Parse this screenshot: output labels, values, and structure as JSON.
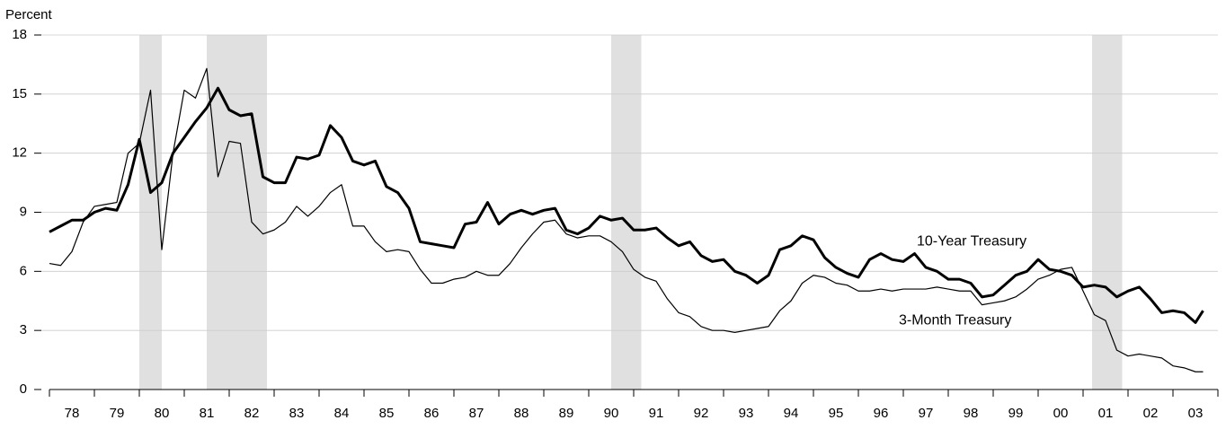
{
  "chart_data": {
    "type": "line",
    "ylabel": "Percent",
    "xlim": [
      1978,
      2004
    ],
    "ylim": [
      0,
      18
    ],
    "yticks": [
      0,
      3,
      6,
      9,
      12,
      15,
      18
    ],
    "xticks": [
      {
        "value": 1978.5,
        "label": "78"
      },
      {
        "value": 1979.5,
        "label": "79"
      },
      {
        "value": 1980.5,
        "label": "80"
      },
      {
        "value": 1981.5,
        "label": "81"
      },
      {
        "value": 1982.5,
        "label": "82"
      },
      {
        "value": 1983.5,
        "label": "83"
      },
      {
        "value": 1984.5,
        "label": "84"
      },
      {
        "value": 1985.5,
        "label": "85"
      },
      {
        "value": 1986.5,
        "label": "86"
      },
      {
        "value": 1987.5,
        "label": "87"
      },
      {
        "value": 1988.5,
        "label": "88"
      },
      {
        "value": 1989.5,
        "label": "89"
      },
      {
        "value": 1990.5,
        "label": "90"
      },
      {
        "value": 1991.5,
        "label": "91"
      },
      {
        "value": 1992.5,
        "label": "92"
      },
      {
        "value": 1993.5,
        "label": "93"
      },
      {
        "value": 1994.5,
        "label": "94"
      },
      {
        "value": 1995.5,
        "label": "95"
      },
      {
        "value": 1996.5,
        "label": "96"
      },
      {
        "value": 1997.5,
        "label": "97"
      },
      {
        "value": 1998.5,
        "label": "98"
      },
      {
        "value": 1999.5,
        "label": "99"
      },
      {
        "value": 2000.5,
        "label": "00"
      },
      {
        "value": 2001.5,
        "label": "01"
      },
      {
        "value": 2002.5,
        "label": "02"
      },
      {
        "value": 2003.5,
        "label": "03"
      }
    ],
    "xticks_minor": [
      1978,
      1979,
      1980,
      1981,
      1982,
      1983,
      1984,
      1985,
      1986,
      1987,
      1988,
      1989,
      1990,
      1991,
      1992,
      1993,
      1994,
      1995,
      1996,
      1997,
      1998,
      1999,
      2000,
      2001,
      2002,
      2003,
      2004
    ],
    "grid": true,
    "shaded_periods": [
      [
        1980.0,
        1980.5
      ],
      [
        1981.5,
        1982.84
      ],
      [
        1990.5,
        1991.17
      ],
      [
        2001.2,
        2001.87
      ]
    ],
    "shade_color": "#e0e0e0",
    "x": [
      1978,
      1978.25,
      1978.5,
      1978.75,
      1979,
      1979.25,
      1979.5,
      1979.75,
      1980,
      1980.25,
      1980.5,
      1980.75,
      1981,
      1981.25,
      1981.5,
      1981.75,
      1982,
      1982.25,
      1982.5,
      1982.75,
      1983,
      1983.25,
      1983.5,
      1983.75,
      1984,
      1984.25,
      1984.5,
      1984.75,
      1985,
      1985.25,
      1985.5,
      1985.75,
      1986,
      1986.25,
      1986.5,
      1986.75,
      1987,
      1987.25,
      1987.5,
      1987.75,
      1988,
      1988.25,
      1988.5,
      1988.75,
      1989,
      1989.25,
      1989.5,
      1989.75,
      1990,
      1990.25,
      1990.5,
      1990.75,
      1991,
      1991.25,
      1991.5,
      1991.75,
      1992,
      1992.25,
      1992.5,
      1992.75,
      1993,
      1993.25,
      1993.5,
      1993.75,
      1994,
      1994.25,
      1994.5,
      1994.75,
      1995,
      1995.25,
      1995.5,
      1995.75,
      1996,
      1996.25,
      1996.5,
      1996.75,
      1997,
      1997.25,
      1997.5,
      1997.75,
      1998,
      1998.25,
      1998.5,
      1998.75,
      1999,
      1999.25,
      1999.5,
      1999.75,
      2000,
      2000.25,
      2000.5,
      2000.75,
      2001,
      2001.25,
      2001.5,
      2001.75,
      2002,
      2002.25,
      2002.5,
      2002.75,
      2003,
      2003.25,
      2003.5,
      2003.67
    ],
    "series": [
      {
        "name": "10-Year Treasury",
        "color": "#000000",
        "width": 3,
        "values": [
          8.0,
          8.3,
          8.6,
          8.6,
          9.0,
          9.2,
          9.1,
          10.4,
          12.7,
          10.0,
          10.5,
          12.0,
          12.8,
          13.6,
          14.3,
          15.3,
          14.2,
          13.9,
          14.0,
          10.8,
          10.5,
          10.5,
          11.8,
          11.7,
          11.9,
          13.4,
          12.8,
          11.6,
          11.4,
          11.6,
          10.3,
          10.0,
          9.2,
          7.5,
          7.4,
          7.3,
          7.2,
          8.4,
          8.5,
          9.5,
          8.4,
          8.9,
          9.1,
          8.9,
          9.1,
          9.2,
          8.1,
          7.9,
          8.2,
          8.8,
          8.6,
          8.7,
          8.1,
          8.1,
          8.2,
          7.7,
          7.3,
          7.5,
          6.8,
          6.5,
          6.6,
          6.0,
          5.8,
          5.4,
          5.8,
          7.1,
          7.3,
          7.8,
          7.6,
          6.7,
          6.2,
          5.9,
          5.7,
          6.6,
          6.9,
          6.6,
          6.5,
          6.9,
          6.2,
          6.0,
          5.6,
          5.6,
          5.4,
          4.7,
          4.8,
          5.3,
          5.8,
          6.0,
          6.6,
          6.1,
          6.0,
          5.8,
          5.2,
          5.3,
          5.2,
          4.7,
          5.0,
          5.2,
          4.6,
          3.9,
          4.0,
          3.9,
          3.4,
          4.0
        ]
      },
      {
        "name": "3-Month Treasury",
        "color": "#000000",
        "width": 1.2,
        "values": [
          6.4,
          6.3,
          7.0,
          8.5,
          9.3,
          9.4,
          9.5,
          12.0,
          12.5,
          15.2,
          7.1,
          12.0,
          15.2,
          14.8,
          16.3,
          10.8,
          12.6,
          12.5,
          8.5,
          7.9,
          8.1,
          8.5,
          9.3,
          8.8,
          9.3,
          10.0,
          10.4,
          8.3,
          8.3,
          7.5,
          7.0,
          7.1,
          7.0,
          6.1,
          5.4,
          5.4,
          5.6,
          5.7,
          6.0,
          5.8,
          5.8,
          6.4,
          7.2,
          7.9,
          8.5,
          8.6,
          7.9,
          7.7,
          7.8,
          7.8,
          7.5,
          7.0,
          6.1,
          5.7,
          5.5,
          4.6,
          3.9,
          3.7,
          3.2,
          3.0,
          3.0,
          2.9,
          3.0,
          3.1,
          3.2,
          4.0,
          4.5,
          5.4,
          5.8,
          5.7,
          5.4,
          5.3,
          5.0,
          5.0,
          5.1,
          5.0,
          5.1,
          5.1,
          5.1,
          5.2,
          5.1,
          5.0,
          5.0,
          4.3,
          4.4,
          4.5,
          4.7,
          5.1,
          5.6,
          5.8,
          6.1,
          6.2,
          5.0,
          3.8,
          3.5,
          2.0,
          1.7,
          1.8,
          1.7,
          1.6,
          1.2,
          1.1,
          0.9,
          0.9
        ]
      }
    ],
    "annotations": [
      {
        "text": "10-Year Treasury",
        "x": 1997.3,
        "y": 7.5
      },
      {
        "text": "3-Month Treasury",
        "x": 1996.9,
        "y": 3.5
      }
    ]
  }
}
